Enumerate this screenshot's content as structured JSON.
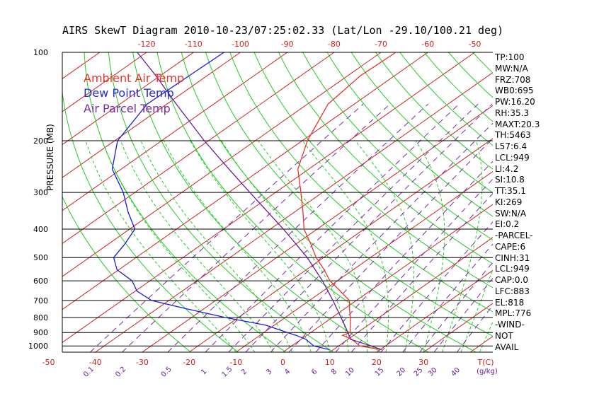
{
  "title": "AIRS SkewT Diagram 2010-10-23/07:25:02.33 (Lat/Lon -29.10/100.21 deg)",
  "legend": [
    {
      "label": "Ambient Air Temp",
      "color": "#e8342c"
    },
    {
      "label": "Dew Point Temp",
      "color": "#2a2ad0"
    },
    {
      "label": "Air Parcel Temp",
      "color": "#7a2aa8"
    }
  ],
  "colors": {
    "temp": "#e8342c",
    "dewpoint": "#1a1ad8",
    "parcel": "#6a1a9a",
    "isotherm": "#cc2222",
    "dry_adiabat": "#22cc22",
    "moist_adiabat": "#22cc22",
    "mixing_ratio": "#7a2aa8",
    "isobar": "#000000"
  },
  "indices": [
    "TP:100",
    "MW:N/A",
    "FRZ:708",
    "WB0:695",
    "PW:16.20",
    "RH:35.3",
    "MAXT:20.3",
    "TH:5463",
    "L57:6.4",
    "LCL:949",
    "LI:4.2",
    "SI:10.8",
    "TT:35.1",
    "KI:269",
    "SW:N/A",
    "EI:0.2",
    "-PARCEL-",
    "CAPE:6",
    "CINH:31",
    "LCL:949",
    "CAP:0.0",
    "LFC:883",
    "EL:818",
    "MPL:776",
    "-WIND-",
    "NOT",
    "AVAIL"
  ],
  "chart_data": {
    "type": "line",
    "title": "AIRS SkewT Diagram 2010-10-23/07:25:02.33 (Lat/Lon -29.10/100.21 deg)",
    "ylabel": "PRESSURE (MB)",
    "y_scale": "log",
    "y_inverted": true,
    "ylim": [
      1050,
      100
    ],
    "pressure_ticks": [
      100,
      200,
      300,
      400,
      500,
      600,
      700,
      800,
      900,
      1000
    ],
    "top_temp_ticks": [
      -120,
      -110,
      -100,
      -90,
      -80,
      -70,
      -60,
      -50,
      -40
    ],
    "bottom_temp_ticks": [
      -50,
      -40,
      -30,
      -20,
      -10,
      0,
      10,
      20,
      30
    ],
    "bottom_temp_label": "T(C)",
    "mixing_ratio_ticks": [
      "0.1",
      "0.2",
      "0.5",
      "1",
      "1.5",
      "2",
      "3",
      "4",
      "6",
      "8",
      "10",
      "15",
      "20",
      "25",
      "30",
      "40"
    ],
    "mixing_ratio_label": "(g/kg)",
    "series": [
      {
        "name": "Ambient Air Temp",
        "points": [
          [
            1030,
            20.3
          ],
          [
            1000,
            14.5
          ],
          [
            950,
            10.9
          ],
          [
            920,
            7.6
          ],
          [
            900,
            8.4
          ],
          [
            850,
            6.2
          ],
          [
            800,
            3.9
          ],
          [
            750,
            1.2
          ],
          [
            700,
            -1.5
          ],
          [
            650,
            -6.3
          ],
          [
            600,
            -11.6
          ],
          [
            550,
            -16.2
          ],
          [
            500,
            -21.6
          ],
          [
            450,
            -26.8
          ],
          [
            400,
            -32.8
          ],
          [
            350,
            -38.2
          ],
          [
            300,
            -44.6
          ],
          [
            250,
            -52.3
          ],
          [
            200,
            -58.9
          ],
          [
            150,
            -65.6
          ],
          [
            120,
            -67.3
          ],
          [
            100,
            -66.8
          ]
        ]
      },
      {
        "name": "Dew Point Temp",
        "points": [
          [
            1030,
            9.2
          ],
          [
            1000,
            4.7
          ],
          [
            950,
            1.1
          ],
          [
            920,
            -2.3
          ],
          [
            900,
            -5.0
          ],
          [
            850,
            -11.8
          ],
          [
            800,
            -22.8
          ],
          [
            750,
            -33.2
          ],
          [
            700,
            -43.7
          ],
          [
            650,
            -49.7
          ],
          [
            600,
            -53.8
          ],
          [
            550,
            -60.4
          ],
          [
            500,
            -64.8
          ],
          [
            450,
            -66.5
          ],
          [
            400,
            -68.9
          ],
          [
            350,
            -75.5
          ],
          [
            300,
            -82.5
          ],
          [
            250,
            -91.9
          ],
          [
            200,
            -99.4
          ],
          [
            150,
            -104.2
          ],
          [
            100,
            -103.5
          ]
        ]
      },
      {
        "name": "Air Parcel Temp",
        "points": [
          [
            1030,
            20.3
          ],
          [
            1000,
            17.0
          ],
          [
            950,
            10.6
          ],
          [
            900,
            7.9
          ],
          [
            850,
            5.0
          ],
          [
            800,
            1.9
          ],
          [
            700,
            -5.0
          ],
          [
            600,
            -13.2
          ],
          [
            500,
            -23.5
          ],
          [
            400,
            -37.2
          ],
          [
            300,
            -55.5
          ],
          [
            250,
            -67.0
          ],
          [
            200,
            -80.9
          ],
          [
            150,
            -98.0
          ],
          [
            120,
            -111.0
          ],
          [
            100,
            -122.0
          ]
        ]
      }
    ],
    "background_lines": [
      "isobars",
      "isotherms",
      "dry adiabats",
      "moist adiabats",
      "mixing ratio lines"
    ],
    "grid": true,
    "legend_placement": "top-left"
  }
}
